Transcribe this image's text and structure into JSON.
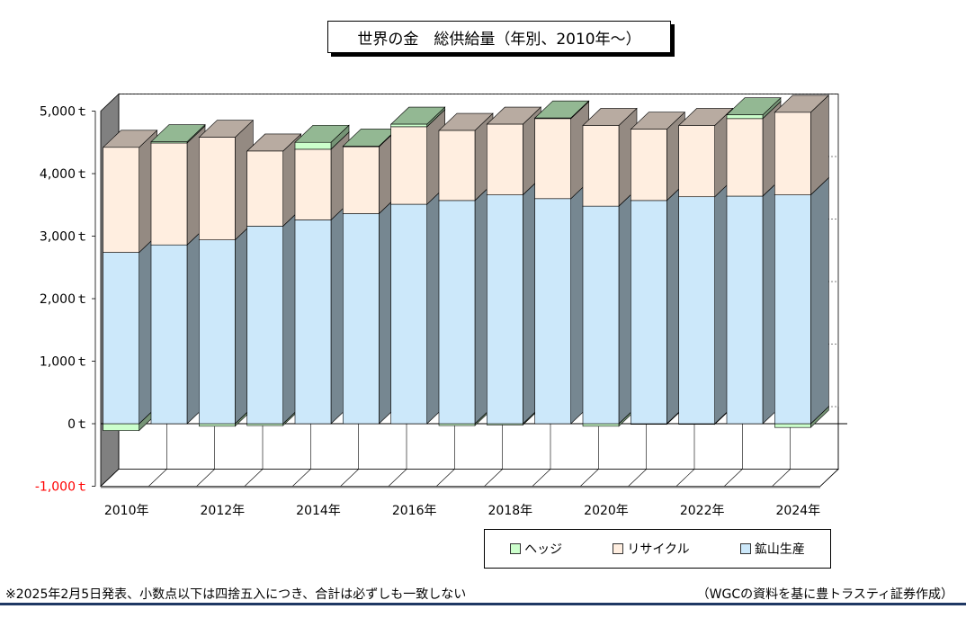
{
  "title": "世界の金　総供給量（年別、2010年〜）",
  "footnote": "※2025年2月5日発表、小数点以下は四捨五入につき、合計は必ずしも一致しない",
  "source": "（WGCの資料を基に豊トラスティ証券作成）",
  "legend": [
    {
      "label": "ヘッジ",
      "color": "#ccffcc"
    },
    {
      "label": "リサイクル",
      "color": "#ffeee0"
    },
    {
      "label": "鉱山生産",
      "color": "#cce8fa"
    }
  ],
  "chart_data": {
    "type": "bar",
    "stacked": true,
    "three_d": true,
    "categories": [
      "2010年",
      "2011年",
      "2012年",
      "2013年",
      "2014年",
      "2015年",
      "2016年",
      "2017年",
      "2018年",
      "2019年",
      "2020年",
      "2021年",
      "2022年",
      "2023年",
      "2024年"
    ],
    "x_tick_labels": [
      "2010年",
      "2012年",
      "2014年",
      "2016年",
      "2018年",
      "2020年",
      "2022年",
      "2024年"
    ],
    "y_tick_labels": [
      "-1,000ｔ",
      "0ｔ",
      "1,000ｔ",
      "2,000ｔ",
      "3,000ｔ",
      "4,000ｔ",
      "5,000ｔ"
    ],
    "ylim": [
      -1000,
      5000
    ],
    "legend_position": "bottom-right",
    "series": [
      {
        "name": "鉱山生産",
        "color": "#cce8fa",
        "values": [
          2740,
          2860,
          2940,
          3160,
          3260,
          3360,
          3510,
          3570,
          3660,
          3600,
          3480,
          3570,
          3630,
          3640,
          3660
        ]
      },
      {
        "name": "リサイクル",
        "color": "#ffeee0",
        "values": [
          1680,
          1630,
          1640,
          1200,
          1130,
          1070,
          1240,
          1120,
          1130,
          1280,
          1290,
          1140,
          1140,
          1240,
          1320
        ]
      },
      {
        "name": "ヘッジ",
        "color": "#ccffcc",
        "values": [
          -110,
          20,
          -40,
          -30,
          110,
          10,
          40,
          -30,
          -20,
          10,
          -40,
          -10,
          -10,
          60,
          -60
        ]
      }
    ]
  }
}
